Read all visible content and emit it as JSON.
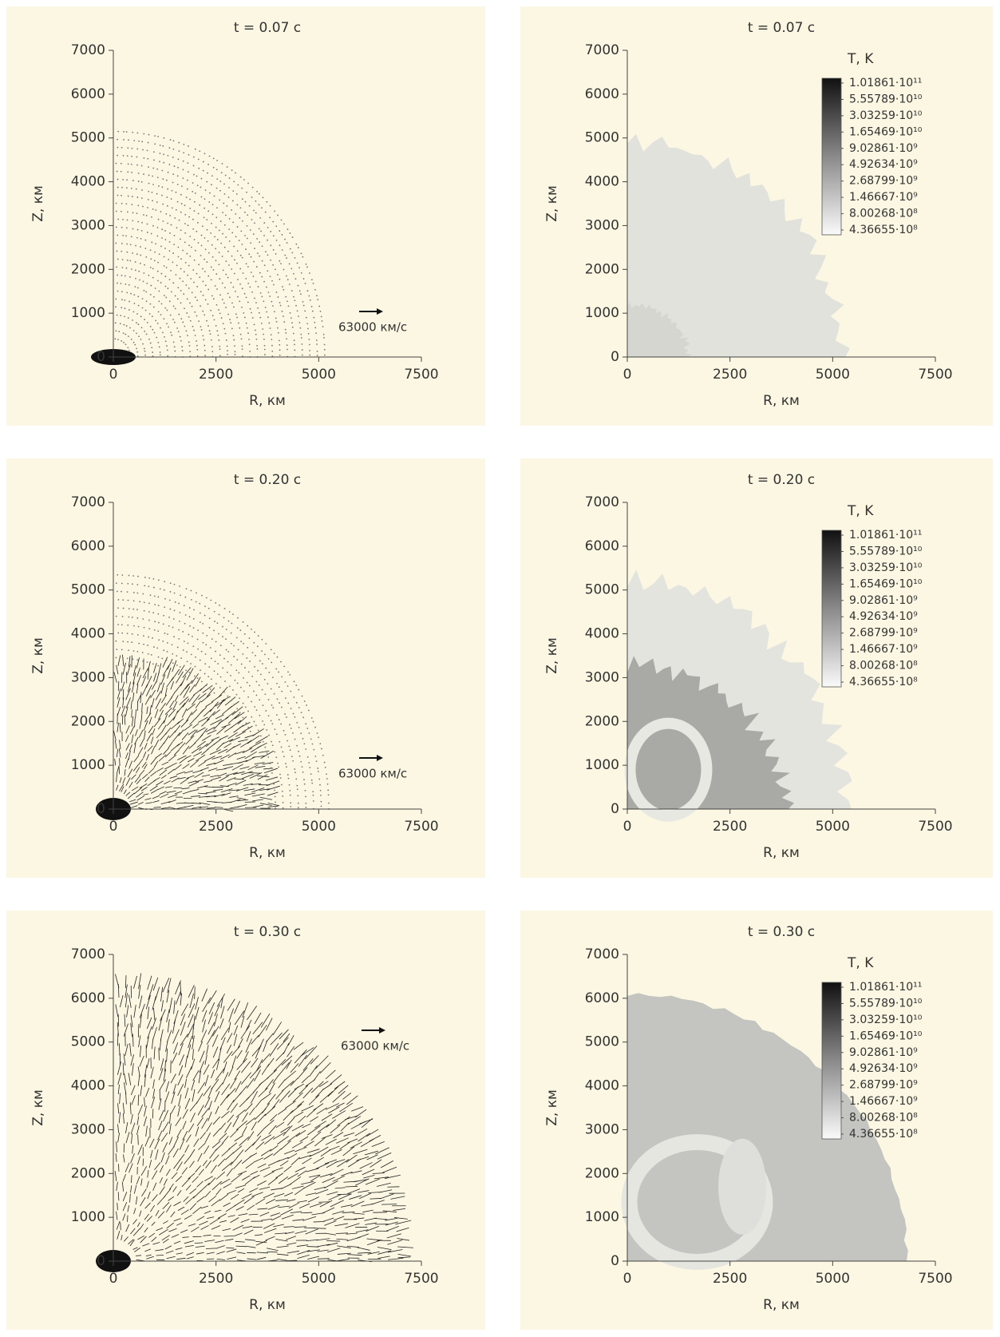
{
  "chart_data": [
    {
      "type": "vector_field",
      "title": "t = 0.07 с",
      "x_label": "R, км",
      "y_label": "Z, км",
      "xlim": [
        0,
        7500
      ],
      "ylim": [
        0,
        7000
      ],
      "xticks": [
        0,
        2500,
        5000,
        7500
      ],
      "yticks": [
        0,
        1000,
        2000,
        3000,
        4000,
        5000,
        6000,
        7000
      ],
      "reference_arrow_label": "63000 км/с"
    },
    {
      "type": "heatmap",
      "title": "t = 0.07 с",
      "x_label": "R, км",
      "y_label": "Z, км",
      "xlim": [
        0,
        7500
      ],
      "ylim": [
        0,
        7000
      ],
      "xticks": [
        0,
        2500,
        5000,
        7500
      ],
      "yticks": [
        0,
        1000,
        2000,
        3000,
        4000,
        5000,
        6000,
        7000
      ],
      "colorbar_title": "T, K",
      "colorbar_ticks": [
        {
          "value": 101861000000,
          "label": "1.01861·10¹¹"
        },
        {
          "value": 55578900000,
          "label": "5.55789·10¹⁰"
        },
        {
          "value": 30325900000,
          "label": "3.03259·10¹⁰"
        },
        {
          "value": 16546900000,
          "label": "1.65469·10¹⁰"
        },
        {
          "value": 9028610000,
          "label": "9.02861·10⁹"
        },
        {
          "value": 4926340000,
          "label": "4.92634·10⁹"
        },
        {
          "value": 2687990000,
          "label": "2.68799·10⁹"
        },
        {
          "value": 1466670000,
          "label": "1.46667·10⁹"
        },
        {
          "value": 800268000,
          "label": "8.00268·10⁸"
        },
        {
          "value": 436655000,
          "label": "4.36655·10⁸"
        }
      ]
    },
    {
      "type": "vector_field",
      "title": "t = 0.20 с",
      "x_label": "R, км",
      "y_label": "Z, км",
      "xlim": [
        0,
        7500
      ],
      "ylim": [
        0,
        7000
      ],
      "xticks": [
        0,
        2500,
        5000,
        7500
      ],
      "yticks": [
        0,
        1000,
        2000,
        3000,
        4000,
        5000,
        6000,
        7000
      ],
      "reference_arrow_label": "63000 км/с"
    },
    {
      "type": "heatmap",
      "title": "t = 0.20 с",
      "x_label": "R, км",
      "y_label": "Z, км",
      "xlim": [
        0,
        7500
      ],
      "ylim": [
        0,
        7000
      ],
      "xticks": [
        0,
        2500,
        5000,
        7500
      ],
      "yticks": [
        0,
        1000,
        2000,
        3000,
        4000,
        5000,
        6000,
        7000
      ],
      "colorbar_title": "T, K",
      "colorbar_ticks": [
        {
          "value": 101861000000,
          "label": "1.01861·10¹¹"
        },
        {
          "value": 55578900000,
          "label": "5.55789·10¹⁰"
        },
        {
          "value": 30325900000,
          "label": "3.03259·10¹⁰"
        },
        {
          "value": 16546900000,
          "label": "1.65469·10¹⁰"
        },
        {
          "value": 9028610000,
          "label": "9.02861·10⁹"
        },
        {
          "value": 4926340000,
          "label": "4.92634·10⁹"
        },
        {
          "value": 2687990000,
          "label": "2.68799·10⁹"
        },
        {
          "value": 1466670000,
          "label": "1.46667·10⁹"
        },
        {
          "value": 800268000,
          "label": "8.00268·10⁸"
        },
        {
          "value": 436655000,
          "label": "4.36655·10⁸"
        }
      ]
    },
    {
      "type": "vector_field",
      "title": "t = 0.30 с",
      "x_label": "R, км",
      "y_label": "Z, км",
      "xlim": [
        0,
        7500
      ],
      "ylim": [
        0,
        7000
      ],
      "xticks": [
        0,
        2500,
        5000,
        7500
      ],
      "yticks": [
        0,
        1000,
        2000,
        3000,
        4000,
        5000,
        6000,
        7000
      ],
      "reference_arrow_label": "63000 км/с"
    },
    {
      "type": "heatmap",
      "title": "t = 0.30 с",
      "x_label": "R, км",
      "y_label": "Z, км",
      "xlim": [
        0,
        7500
      ],
      "ylim": [
        0,
        7000
      ],
      "xticks": [
        0,
        2500,
        5000,
        7500
      ],
      "yticks": [
        0,
        1000,
        2000,
        3000,
        4000,
        5000,
        6000,
        7000
      ],
      "colorbar_title": "T, K",
      "colorbar_ticks": [
        {
          "value": 101861000000,
          "label": "1.01861·10¹¹"
        },
        {
          "value": 55578900000,
          "label": "5.55789·10¹⁰"
        },
        {
          "value": 30325900000,
          "label": "3.03259·10¹⁰"
        },
        {
          "value": 16546900000,
          "label": "1.65469·10¹⁰"
        },
        {
          "value": 9028610000,
          "label": "9.02861·10⁹"
        },
        {
          "value": 4926340000,
          "label": "4.92634·10⁹"
        },
        {
          "value": 2687990000,
          "label": "2.68799·10⁹"
        },
        {
          "value": 1466670000,
          "label": "1.46667·10⁹"
        },
        {
          "value": 800268000,
          "label": "8.00268·10⁸"
        },
        {
          "value": 436655000,
          "label": "4.36655·10⁸"
        }
      ]
    }
  ]
}
